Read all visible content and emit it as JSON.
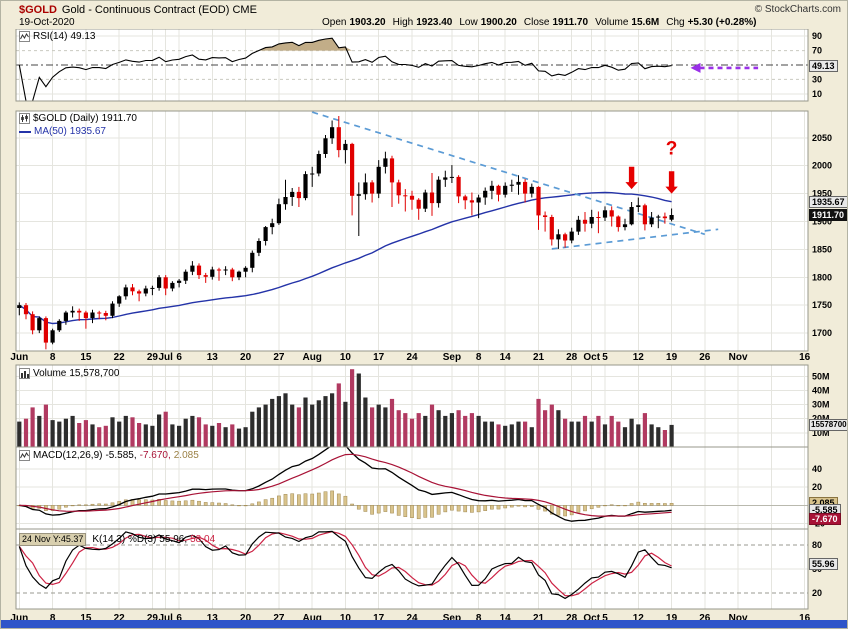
{
  "header": {
    "symbol": "$GOLD",
    "title": "Gold - Continuous Contract (EOD) CME",
    "copyright": "© StockCharts.com",
    "date": "19-Oct-2020",
    "quote": [
      {
        "label": "Open",
        "value": "1903.20"
      },
      {
        "label": "High",
        "value": "1923.40"
      },
      {
        "label": "Low",
        "value": "1900.20"
      },
      {
        "label": "Close",
        "value": "1911.70"
      },
      {
        "label": "Volume",
        "value": "15.6M"
      },
      {
        "label": "Chg",
        "value": "+5.30 (+0.28%)"
      }
    ]
  },
  "legends": {
    "rsi": {
      "label": "RSI(14)",
      "value": "49.13"
    },
    "price": {
      "label": "$GOLD (Daily)",
      "value": "1911.70"
    },
    "ma": {
      "label": "MA(50)",
      "value": "1935.67"
    },
    "volume": {
      "label": "Volume",
      "value": "15,578,700"
    },
    "macd": {
      "label": "MACD(12,26,9)",
      "macd": "-5.585,",
      "signal": "-7.670,",
      "hist": "2.085"
    },
    "stoch": {
      "prefix": "24 Nov Y:45.37",
      "label": "K(14,3) %D(3)",
      "k": "55.96,",
      "d": "58.04"
    }
  },
  "axis_boxes": {
    "rsi": "49.13",
    "ma50": "1935.67",
    "close": "1911.70",
    "volume": "15578700",
    "hist": "2.085",
    "macd": "-5.585",
    "signal": "-7.670",
    "stoch": "55.96"
  },
  "chart_data": {
    "type": "candlestick",
    "title": "$GOLD Gold - Continuous Contract (EOD) CME",
    "date": "19-Oct-2020",
    "timeframe": "daily",
    "x_range": "Jun 2020 - Nov 16 2020 (trading-day slots)",
    "total_day_slots": 119,
    "last_quote": {
      "open": 1903.2,
      "high": 1923.4,
      "low": 1900.2,
      "close": 1911.7,
      "volume": 15600000,
      "chg": "+5.30 (+0.28%)"
    },
    "xticks": [
      {
        "i": 0,
        "label": "Jun"
      },
      {
        "i": 5,
        "label": "8"
      },
      {
        "i": 10,
        "label": "15"
      },
      {
        "i": 15,
        "label": "22"
      },
      {
        "i": 20,
        "label": "29"
      },
      {
        "i": 22,
        "label": "Jul"
      },
      {
        "i": 24,
        "label": "6"
      },
      {
        "i": 29,
        "label": "13"
      },
      {
        "i": 34,
        "label": "20"
      },
      {
        "i": 39,
        "label": "27"
      },
      {
        "i": 44,
        "label": "Aug"
      },
      {
        "i": 49,
        "label": "10"
      },
      {
        "i": 54,
        "label": "17"
      },
      {
        "i": 59,
        "label": "24"
      },
      {
        "i": 65,
        "label": "Sep"
      },
      {
        "i": 69,
        "label": "8"
      },
      {
        "i": 73,
        "label": "14"
      },
      {
        "i": 78,
        "label": "21"
      },
      {
        "i": 83,
        "label": "28"
      },
      {
        "i": 86,
        "label": "Oct"
      },
      {
        "i": 88,
        "label": "5"
      },
      {
        "i": 93,
        "label": "12"
      },
      {
        "i": 98,
        "label": "19"
      },
      {
        "i": 103,
        "label": "26"
      },
      {
        "i": 108,
        "label": "Nov"
      },
      {
        "i": 113,
        "label": ""
      },
      {
        "i": 118,
        "label": "16"
      }
    ],
    "panels": {
      "rsi": {
        "type": "line",
        "label": "RSI(14)",
        "current": 49.13,
        "ylim": [
          0,
          100
        ],
        "yticks": [
          90,
          70,
          50,
          30,
          10
        ],
        "overbought": 70,
        "oversold": 30,
        "midline": 50
      },
      "price": {
        "type": "candlestick",
        "label": "$GOLD (Daily)",
        "close": 1911.7,
        "ma50_current": 1935.67,
        "ylim": [
          1668,
          2098
        ],
        "yticks": [
          2050,
          2000,
          1950,
          1900,
          1850,
          1800,
          1750,
          1700
        ]
      },
      "volume": {
        "type": "bar",
        "label": "Volume",
        "current": 15578700,
        "current_m": 15.58,
        "ylim_m": [
          0,
          58
        ],
        "yticks_m": [
          50,
          40,
          30,
          20,
          10
        ]
      },
      "macd": {
        "type": "line+histogram",
        "label": "MACD(12,26,9)",
        "macd": -5.585,
        "signal": -7.67,
        "hist": 2.085,
        "ylim": [
          -26,
          64
        ],
        "yticks": [
          40,
          20,
          0,
          -20
        ]
      },
      "stoch": {
        "type": "line",
        "label": "Full Stochastic %K(14,3) %D(3)",
        "k": 55.96,
        "d": 58.04,
        "ylim": [
          0,
          100
        ],
        "yticks": [
          80,
          50,
          20
        ],
        "bands": [
          80,
          20
        ]
      }
    },
    "candles": [
      [
        "06-01",
        1745,
        1755,
        1732,
        1750,
        18
      ],
      [
        "06-02",
        1750,
        1754,
        1725,
        1734,
        20
      ],
      [
        "06-03",
        1734,
        1739,
        1698,
        1705,
        28
      ],
      [
        "06-04",
        1705,
        1730,
        1700,
        1727,
        22
      ],
      [
        "06-05",
        1727,
        1730,
        1671,
        1683,
        30
      ],
      [
        "06-08",
        1683,
        1708,
        1680,
        1705,
        19
      ],
      [
        "06-09",
        1705,
        1725,
        1702,
        1722,
        18
      ],
      [
        "06-10",
        1722,
        1740,
        1715,
        1737,
        20
      ],
      [
        "06-11",
        1737,
        1748,
        1728,
        1740,
        22
      ],
      [
        "06-12",
        1740,
        1744,
        1722,
        1737,
        17
      ],
      [
        "06-15",
        1737,
        1740,
        1708,
        1727,
        19
      ],
      [
        "06-16",
        1727,
        1742,
        1718,
        1737,
        16
      ],
      [
        "06-17",
        1737,
        1740,
        1725,
        1736,
        14
      ],
      [
        "06-18",
        1736,
        1740,
        1723,
        1731,
        15
      ],
      [
        "06-19",
        1731,
        1757,
        1727,
        1753,
        21
      ],
      [
        "06-22",
        1753,
        1768,
        1747,
        1766,
        18
      ],
      [
        "06-23",
        1766,
        1787,
        1760,
        1782,
        22
      ],
      [
        "06-24",
        1782,
        1788,
        1768,
        1775,
        21
      ],
      [
        "06-25",
        1775,
        1778,
        1757,
        1771,
        17
      ],
      [
        "06-26",
        1771,
        1785,
        1766,
        1780,
        16
      ],
      [
        "06-29",
        1780,
        1785,
        1768,
        1781,
        15
      ],
      [
        "06-30",
        1781,
        1804,
        1776,
        1800,
        23
      ],
      [
        "07-01",
        1800,
        1804,
        1768,
        1780,
        25
      ],
      [
        "07-02",
        1780,
        1793,
        1775,
        1790,
        16
      ],
      [
        "07-06",
        1790,
        1797,
        1782,
        1794,
        15
      ],
      [
        "07-07",
        1794,
        1814,
        1788,
        1810,
        20
      ],
      [
        "07-08",
        1810,
        1829,
        1804,
        1821,
        22
      ],
      [
        "07-09",
        1821,
        1825,
        1797,
        1804,
        21
      ],
      [
        "07-10",
        1804,
        1808,
        1790,
        1801,
        16
      ],
      [
        "07-13",
        1801,
        1819,
        1796,
        1814,
        15
      ],
      [
        "07-14",
        1814,
        1817,
        1794,
        1813,
        17
      ],
      [
        "07-15",
        1813,
        1820,
        1804,
        1814,
        14
      ],
      [
        "07-16",
        1814,
        1817,
        1793,
        1800,
        16
      ],
      [
        "07-17",
        1800,
        1812,
        1795,
        1810,
        13
      ],
      [
        "07-20",
        1810,
        1820,
        1800,
        1817,
        14
      ],
      [
        "07-21",
        1817,
        1848,
        1809,
        1844,
        25
      ],
      [
        "07-22",
        1844,
        1870,
        1838,
        1865,
        28
      ],
      [
        "07-23",
        1865,
        1892,
        1857,
        1890,
        30
      ],
      [
        "07-24",
        1890,
        1905,
        1877,
        1897,
        34
      ],
      [
        "07-27",
        1897,
        1941,
        1894,
        1931,
        36
      ],
      [
        "07-28",
        1931,
        1975,
        1921,
        1944,
        38
      ],
      [
        "07-29",
        1944,
        1960,
        1928,
        1953,
        30
      ],
      [
        "07-30",
        1953,
        1962,
        1926,
        1942,
        28
      ],
      [
        "07-31",
        1942,
        1990,
        1938,
        1985,
        35
      ],
      [
        "08-03",
        1985,
        1998,
        1962,
        1986,
        30
      ],
      [
        "08-04",
        1986,
        2027,
        1981,
        2021,
        33
      ],
      [
        "08-05",
        2021,
        2055,
        2014,
        2049,
        36
      ],
      [
        "08-06",
        2049,
        2081,
        2039,
        2069,
        38
      ],
      [
        "08-07",
        2069,
        2089,
        2015,
        2028,
        45
      ],
      [
        "08-10",
        2028,
        2046,
        2004,
        2039,
        32
      ],
      [
        "08-11",
        2039,
        2041,
        1911,
        1946,
        55
      ],
      [
        "08-12",
        1946,
        1970,
        1874,
        1949,
        52
      ],
      [
        "08-13",
        1949,
        1986,
        1939,
        1970,
        35
      ],
      [
        "08-14",
        1970,
        1974,
        1934,
        1950,
        28
      ],
      [
        "08-17",
        1950,
        2010,
        1942,
        1998,
        30
      ],
      [
        "08-18",
        1998,
        2025,
        1986,
        2013,
        28
      ],
      [
        "08-19",
        2013,
        2018,
        1926,
        1970,
        34
      ],
      [
        "08-20",
        1970,
        1975,
        1932,
        1947,
        26
      ],
      [
        "08-21",
        1947,
        1958,
        1918,
        1946,
        24
      ],
      [
        "08-24",
        1946,
        1955,
        1921,
        1939,
        20
      ],
      [
        "08-25",
        1939,
        1942,
        1903,
        1923,
        24
      ],
      [
        "08-26",
        1923,
        1957,
        1917,
        1952,
        22
      ],
      [
        "08-27",
        1952,
        1987,
        1910,
        1933,
        30
      ],
      [
        "08-28",
        1933,
        1981,
        1925,
        1975,
        26
      ],
      [
        "08-31",
        1975,
        1991,
        1962,
        1979,
        22
      ],
      [
        "09-01",
        1979,
        2001,
        1969,
        1980,
        24
      ],
      [
        "09-02",
        1980,
        1983,
        1933,
        1945,
        26
      ],
      [
        "09-03",
        1945,
        1948,
        1922,
        1938,
        22
      ],
      [
        "09-04",
        1938,
        1952,
        1911,
        1934,
        24
      ],
      [
        "09-08",
        1934,
        1948,
        1906,
        1943,
        22
      ],
      [
        "09-09",
        1943,
        1961,
        1930,
        1955,
        18
      ],
      [
        "09-10",
        1955,
        1973,
        1940,
        1964,
        18
      ],
      [
        "09-11",
        1964,
        1966,
        1936,
        1948,
        16
      ],
      [
        "09-14",
        1948,
        1970,
        1943,
        1964,
        15
      ],
      [
        "09-15",
        1964,
        1975,
        1953,
        1966,
        16
      ],
      [
        "09-16",
        1966,
        1983,
        1948,
        1971,
        18
      ],
      [
        "09-17",
        1971,
        1976,
        1934,
        1950,
        18
      ],
      [
        "09-18",
        1950,
        1968,
        1943,
        1962,
        14
      ],
      [
        "09-21",
        1962,
        1963,
        1885,
        1911,
        34
      ],
      [
        "09-22",
        1911,
        1918,
        1882,
        1908,
        26
      ],
      [
        "09-23",
        1908,
        1912,
        1857,
        1868,
        30
      ],
      [
        "09-24",
        1868,
        1886,
        1851,
        1877,
        26
      ],
      [
        "09-25",
        1877,
        1880,
        1853,
        1866,
        20
      ],
      [
        "09-28",
        1866,
        1889,
        1861,
        1882,
        18
      ],
      [
        "09-29",
        1882,
        1910,
        1876,
        1903,
        18
      ],
      [
        "09-30",
        1903,
        1917,
        1882,
        1896,
        22
      ],
      [
        "10-01",
        1896,
        1921,
        1888,
        1908,
        18
      ],
      [
        "10-02",
        1908,
        1918,
        1879,
        1907,
        22
      ],
      [
        "10-05",
        1907,
        1927,
        1901,
        1920,
        16
      ],
      [
        "10-06",
        1920,
        1927,
        1891,
        1909,
        22
      ],
      [
        "10-07",
        1909,
        1911,
        1882,
        1890,
        18
      ],
      [
        "10-08",
        1890,
        1905,
        1884,
        1895,
        14
      ],
      [
        "10-09",
        1895,
        1935,
        1893,
        1926,
        20
      ],
      [
        "10-12",
        1926,
        1943,
        1917,
        1929,
        16
      ],
      [
        "10-13",
        1929,
        1932,
        1884,
        1895,
        24
      ],
      [
        "10-14",
        1895,
        1917,
        1890,
        1907,
        16
      ],
      [
        "10-15",
        1907,
        1912,
        1888,
        1909,
        14
      ],
      [
        "10-16",
        1909,
        1916,
        1896,
        1906,
        12
      ],
      [
        "10-19",
        1903.2,
        1923.4,
        1900.2,
        1911.7,
        15.6
      ]
    ],
    "trendlines": [
      {
        "from_day": 44,
        "from_value": 2096,
        "to_day": 103,
        "to_value": 1877,
        "style": "dashed",
        "color": "#5b9bd5"
      },
      {
        "from_day": 80,
        "from_value": 1851,
        "to_day": 105,
        "to_value": 1886,
        "style": "dashed",
        "color": "#5b9bd5"
      }
    ],
    "annotations": {
      "down_arrows": [
        {
          "day": 92,
          "tail_value": 1998,
          "tip_value": 1958
        },
        {
          "day": 98,
          "tail_value": 1990,
          "tip_value": 1950
        }
      ],
      "question_mark": {
        "day": 98,
        "value": 2020,
        "text": "?"
      },
      "rsi_arrow": {
        "value": 46,
        "from_day": 101,
        "to_day": 111,
        "direction": "left",
        "color": "#9a30e8"
      }
    }
  }
}
